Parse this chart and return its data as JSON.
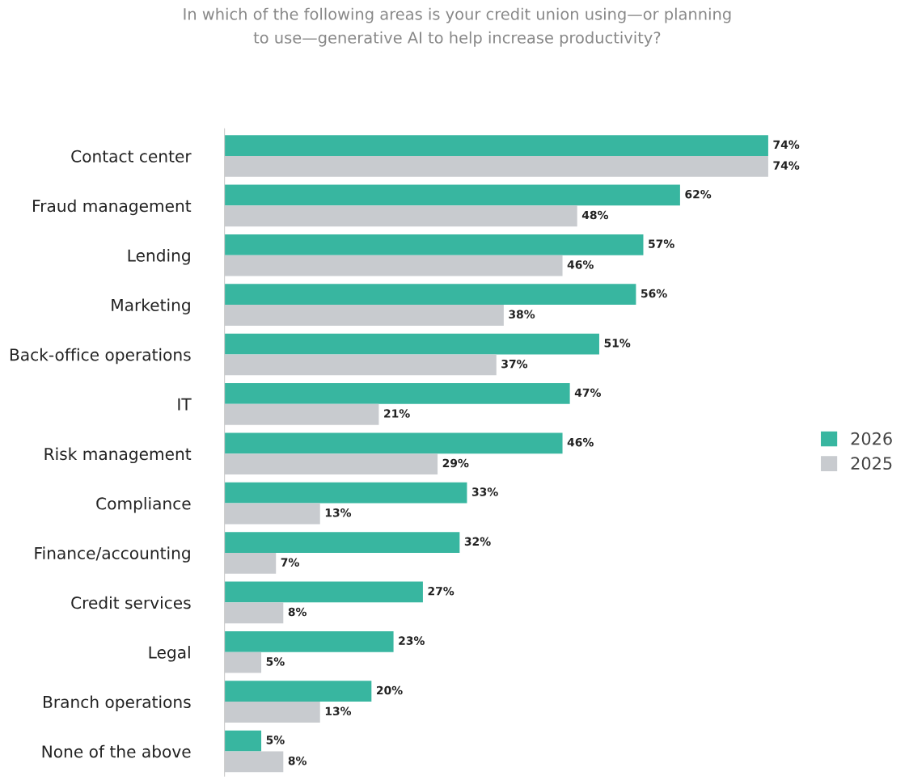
{
  "chart_data": {
    "type": "bar",
    "orientation": "horizontal",
    "title": "In which of the following areas is your credit union using—or planning\nto use—generative AI to help increase productivity?",
    "categories": [
      "Contact center",
      "Fraud management",
      "Lending",
      "Marketing",
      "Back-office operations",
      "IT",
      "Risk management",
      "Compliance",
      "Finance/accounting",
      "Credit services",
      "Legal",
      "Branch operations",
      "None of the above"
    ],
    "series": [
      {
        "name": "2026",
        "color": "#38b6a0",
        "values": [
          74,
          62,
          57,
          56,
          51,
          47,
          46,
          33,
          32,
          27,
          23,
          20,
          5
        ],
        "value_labels": [
          "74%",
          "62%",
          "57%",
          "56%",
          "51%",
          "47%",
          "46%",
          "33%",
          "32%",
          "27%",
          "23%",
          "20%",
          "5%"
        ]
      },
      {
        "name": "2025",
        "color": "#c8cbcf",
        "values": [
          74,
          48,
          46,
          38,
          37,
          21,
          29,
          13,
          7,
          8,
          5,
          13,
          8
        ],
        "value_labels": [
          "74%",
          "48%",
          "46%",
          "38%",
          "37%",
          "21%",
          "29%",
          "13%",
          "7%",
          "8%",
          "5%",
          "13%",
          "8%"
        ]
      }
    ],
    "legend": "right",
    "grid": false,
    "tick_labels": "y"
  }
}
